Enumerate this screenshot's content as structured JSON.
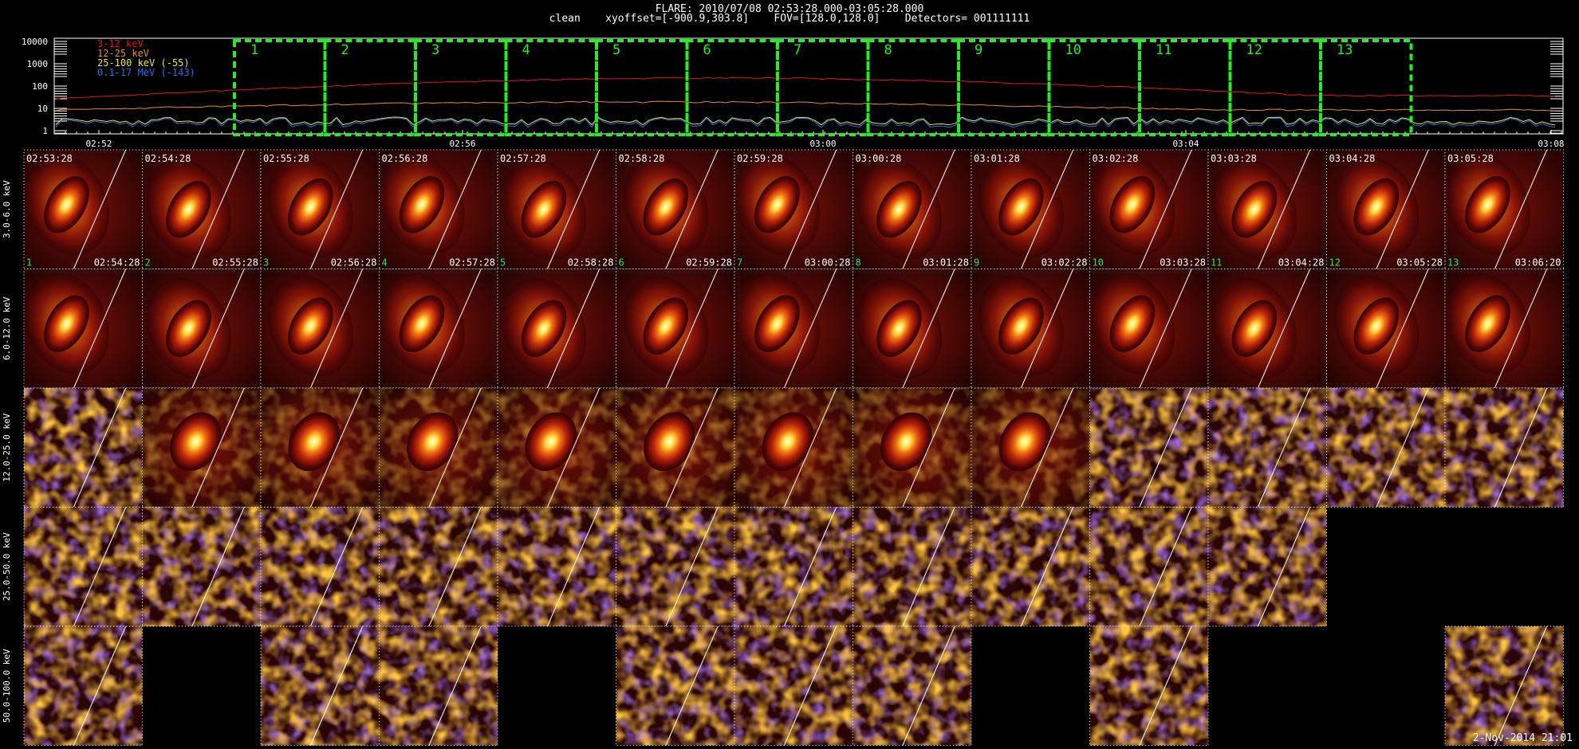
{
  "header": {
    "line1": "FLARE: 2010/07/08 02:53:28.000-03:05:28.000",
    "line2": "clean    xyoffset=[-900.9,303.8]    FOV=[128.0,128.0]    Detectors= 001111111"
  },
  "lightcurve": {
    "y_ticks": [
      "10000",
      "1000",
      "100",
      "10",
      "1"
    ],
    "x_ticks": [
      "02:52",
      "02:56",
      "03:00",
      "03:04",
      "03:08"
    ],
    "legend": [
      {
        "label": "3-12 keV",
        "color": "#e01818"
      },
      {
        "label": "12-25 keV",
        "color": "#e98b1c"
      },
      {
        "label": "25-100 keV (-55)",
        "color": "#e8e82a"
      },
      {
        "label": "0.1-17 MeV (-143)",
        "color": "#2c6cf0"
      }
    ],
    "interval_labels": [
      "1",
      "2",
      "3",
      "4",
      "5",
      "6",
      "7",
      "8",
      "9",
      "10",
      "11",
      "12",
      "13"
    ],
    "box_color": "#22ee22"
  },
  "rows": [
    {
      "label": "3.0-6.0 keV",
      "present": [
        1,
        1,
        1,
        1,
        1,
        1,
        1,
        1,
        1,
        1,
        1,
        1,
        1
      ]
    },
    {
      "label": "6.0-12.0 keV",
      "present": [
        1,
        1,
        1,
        1,
        1,
        1,
        1,
        1,
        1,
        1,
        1,
        1,
        1
      ]
    },
    {
      "label": "12.0-25.0 keV",
      "present": [
        1,
        1,
        1,
        1,
        1,
        1,
        1,
        1,
        1,
        1,
        1,
        1,
        1
      ]
    },
    {
      "label": "25.0-50.0 keV",
      "present": [
        1,
        1,
        1,
        1,
        1,
        1,
        1,
        1,
        1,
        1,
        1,
        0,
        0
      ]
    },
    {
      "label": "50.0-100.0 keV",
      "present": [
        1,
        0,
        1,
        1,
        0,
        1,
        1,
        1,
        0,
        1,
        0,
        0,
        1
      ]
    }
  ],
  "time_starts": [
    "02:53:28",
    "02:54:28",
    "02:55:28",
    "02:56:28",
    "02:57:28",
    "02:58:28",
    "02:59:28",
    "03:00:28",
    "03:01:28",
    "03:02:28",
    "03:03:28",
    "03:04:28",
    "03:05:28"
  ],
  "time_ends": [
    "02:54:28",
    "02:55:28",
    "02:56:28",
    "02:57:28",
    "02:58:28",
    "02:59:28",
    "03:00:28",
    "03:01:28",
    "03:02:28",
    "03:03:28",
    "03:04:28",
    "03:05:28",
    "03:06:20"
  ],
  "footer": "2-Nov-2014 21:01"
}
